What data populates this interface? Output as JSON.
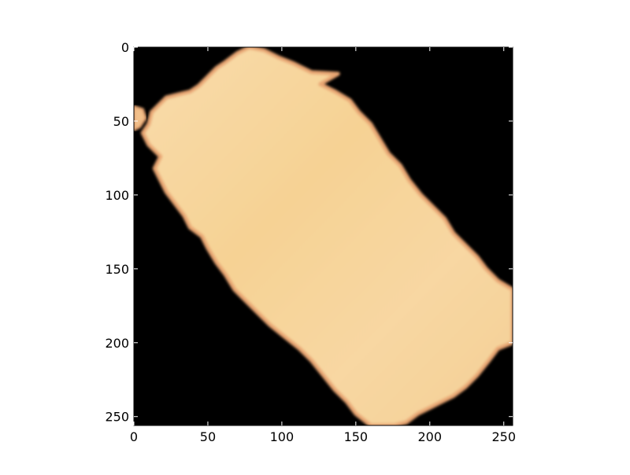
{
  "chart_data": {
    "type": "heatmap",
    "title": "",
    "xlabel": "",
    "ylabel": "",
    "xlim": [
      0,
      256
    ],
    "ylim": [
      256,
      0
    ],
    "y_inverted": true,
    "grid": false,
    "legend": "none",
    "x_ticks": [
      0,
      50,
      100,
      150,
      200,
      250
    ],
    "y_ticks": [
      0,
      50,
      100,
      150,
      200,
      250
    ],
    "x_tick_labels": [
      "0",
      "50",
      "100",
      "150",
      "200",
      "250"
    ],
    "y_tick_labels": [
      "0",
      "50",
      "100",
      "150",
      "200",
      "250"
    ],
    "background_color": "#000000",
    "image_content": {
      "description": "tilted rounded rectangle (crop mask)",
      "fill_colors": [
        "#F7D9A2",
        "#F5D08F",
        "#FAD8A6",
        "#EFC88A"
      ],
      "edge_color": "#E9A36E",
      "outline": [
        [
          78,
          0
        ],
        [
          88,
          2
        ],
        [
          98,
          7
        ],
        [
          108,
          11
        ],
        [
          120,
          17
        ],
        [
          138,
          18
        ],
        [
          126,
          25
        ],
        [
          136,
          30
        ],
        [
          146,
          36
        ],
        [
          152,
          44
        ],
        [
          160,
          52
        ],
        [
          166,
          62
        ],
        [
          172,
          72
        ],
        [
          180,
          80
        ],
        [
          186,
          90
        ],
        [
          194,
          100
        ],
        [
          202,
          108
        ],
        [
          210,
          116
        ],
        [
          216,
          126
        ],
        [
          224,
          134
        ],
        [
          232,
          142
        ],
        [
          238,
          150
        ],
        [
          246,
          158
        ],
        [
          256,
          164
        ],
        [
          256,
          200
        ],
        [
          246,
          204
        ],
        [
          240,
          212
        ],
        [
          232,
          222
        ],
        [
          224,
          230
        ],
        [
          216,
          236
        ],
        [
          208,
          240
        ],
        [
          200,
          244
        ],
        [
          192,
          248
        ],
        [
          184,
          254
        ],
        [
          176,
          256
        ],
        [
          160,
          256
        ],
        [
          150,
          248
        ],
        [
          144,
          240
        ],
        [
          136,
          232
        ],
        [
          128,
          222
        ],
        [
          120,
          212
        ],
        [
          112,
          204
        ],
        [
          102,
          196
        ],
        [
          92,
          188
        ],
        [
          84,
          180
        ],
        [
          76,
          172
        ],
        [
          68,
          164
        ],
        [
          62,
          154
        ],
        [
          56,
          146
        ],
        [
          50,
          136
        ],
        [
          46,
          128
        ],
        [
          38,
          122
        ],
        [
          34,
          114
        ],
        [
          28,
          106
        ],
        [
          22,
          98
        ],
        [
          18,
          90
        ],
        [
          14,
          82
        ],
        [
          18,
          74
        ],
        [
          10,
          66
        ],
        [
          6,
          58
        ],
        [
          10,
          52
        ],
        [
          12,
          44
        ],
        [
          18,
          38
        ],
        [
          22,
          34
        ],
        [
          30,
          32
        ],
        [
          38,
          30
        ],
        [
          44,
          26
        ],
        [
          50,
          20
        ],
        [
          56,
          14
        ],
        [
          62,
          10
        ],
        [
          70,
          4
        ]
      ],
      "small_blob": [
        [
          0,
          40
        ],
        [
          6,
          42
        ],
        [
          8,
          48
        ],
        [
          4,
          54
        ],
        [
          0,
          56
        ]
      ]
    }
  }
}
